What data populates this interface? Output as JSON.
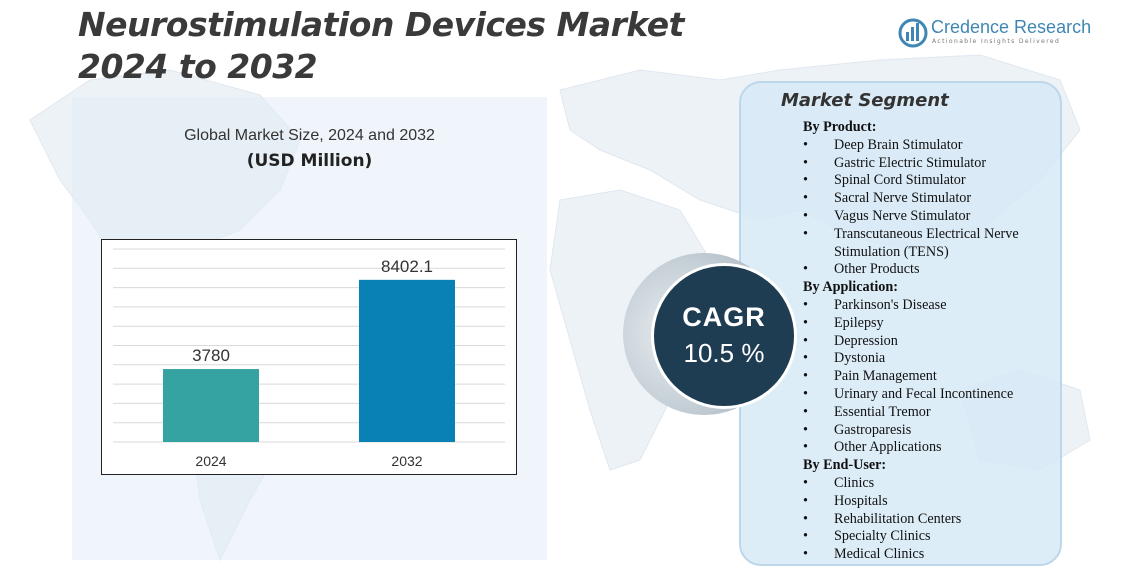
{
  "header": {
    "title_line1": "Neurostimulation Devices Market",
    "title_line2": "2024 to 2032"
  },
  "brand": {
    "name": "Credence Research",
    "tagline": "Actionable Insights Delivered",
    "color": "#3f86b4"
  },
  "chart_data": {
    "type": "bar",
    "title": "Global Market Size,  2024 and 2032",
    "ylabel": "(USD Million)",
    "xlabel": "",
    "categories": [
      "2024",
      "2032"
    ],
    "values": [
      3780,
      8402.1
    ],
    "value_labels": [
      "3780",
      "8402.1"
    ],
    "colors": [
      "#35a3a1",
      "#0981b5"
    ],
    "ylim": [
      0,
      10000
    ],
    "grid": true,
    "legend": "none"
  },
  "cagr": {
    "label": "CAGR",
    "value": "10.5 %"
  },
  "segments": {
    "title": "Market Segment",
    "groups": [
      {
        "heading": "By Product:",
        "items": [
          "Deep Brain Stimulator",
          "Gastric Electric Stimulator",
          "Spinal  Cord Stimulator",
          "Sacral Nerve Stimulator",
          "Vagus  Nerve Stimulator",
          "Transcutaneous  Electrical Nerve Stimulation (TENS)",
          "Other Products"
        ]
      },
      {
        "heading": "By Application:",
        "items": [
          "Parkinson's Disease",
          "Epilepsy",
          "Depression",
          "Dystonia",
          "Pain Management",
          "Urinary and Fecal Incontinence",
          "Essential Tremor",
          "Gastroparesis",
          "Other Applications"
        ]
      },
      {
        "heading": "By End-User:",
        "items": [
          "Clinics",
          "Hospitals",
          "Rehabilitation Centers",
          "Specialty Clinics",
          "Medical Clinics"
        ]
      }
    ]
  }
}
